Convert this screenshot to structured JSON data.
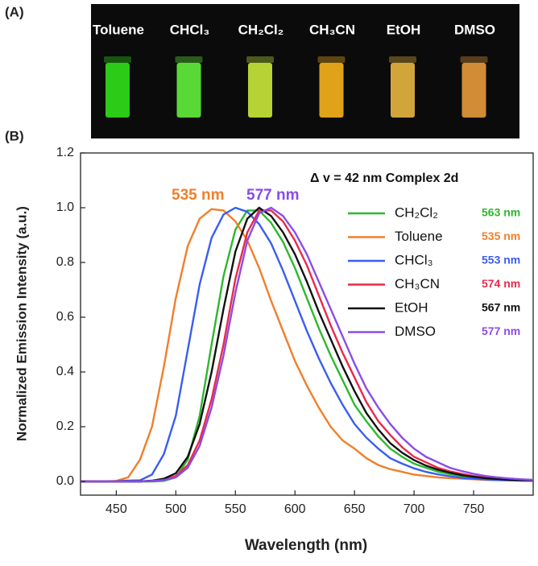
{
  "panel_a": {
    "label": "(A)",
    "solvents": [
      {
        "name": "Toluene",
        "color": "#2fe01a"
      },
      {
        "name": "CHCl₃",
        "color": "#62f03a"
      },
      {
        "name": "CH₂Cl₂",
        "color": "#c9e83a"
      },
      {
        "name": "CH₃CN",
        "color": "#f6b21a"
      },
      {
        "name": "EtOH",
        "color": "#e8b640"
      },
      {
        "name": "DMSO",
        "color": "#e89a3a"
      }
    ]
  },
  "chart_data": {
    "type": "line",
    "panel_label": "(B)",
    "annotations": [
      "Δ v = 42 nm Complex 2d",
      "535 nm",
      "577 nm"
    ],
    "x_label": "Wavelength (nm)",
    "y_label": "Normalized Emission Intensity (a.u.)",
    "x": [
      420,
      430,
      440,
      450,
      460,
      470,
      480,
      490,
      500,
      510,
      520,
      530,
      540,
      550,
      560,
      570,
      580,
      590,
      600,
      610,
      620,
      630,
      640,
      650,
      660,
      670,
      680,
      690,
      700,
      710,
      720,
      730,
      740,
      750,
      760,
      770,
      780,
      790,
      800
    ],
    "xlim": [
      420,
      800
    ],
    "xticks": [
      450,
      500,
      550,
      600,
      650,
      700,
      750
    ],
    "ylim": [
      -0.05,
      1.2
    ],
    "yticks": [
      {
        "value": 0,
        "label": "0.0"
      },
      0.2,
      0.4,
      0.6,
      0.8,
      {
        "value": 1,
        "label": "1.0"
      },
      1.2
    ],
    "series": [
      {
        "name": "CH₂Cl₂",
        "peak_label": "563 nm",
        "color": "#2db82d",
        "values": [
          0,
          0,
          0,
          0,
          0,
          0,
          0,
          0.002,
          0.015,
          0.08,
          0.24,
          0.5,
          0.75,
          0.92,
          0.99,
          0.99,
          0.945,
          0.875,
          0.78,
          0.67,
          0.56,
          0.46,
          0.37,
          0.28,
          0.22,
          0.165,
          0.12,
          0.09,
          0.065,
          0.05,
          0.036,
          0.027,
          0.019,
          0.013,
          0.009,
          0.006,
          0.005,
          0.004,
          0.003
        ]
      },
      {
        "name": "Toluene",
        "peak_label": "535 nm",
        "color": "#f07f2a",
        "values": [
          0,
          0,
          0,
          0.002,
          0.015,
          0.08,
          0.2,
          0.42,
          0.67,
          0.86,
          0.96,
          0.995,
          0.99,
          0.95,
          0.88,
          0.78,
          0.66,
          0.55,
          0.44,
          0.35,
          0.27,
          0.2,
          0.15,
          0.12,
          0.085,
          0.06,
          0.045,
          0.035,
          0.025,
          0.02,
          0.015,
          0.012,
          0.01,
          0.008,
          0.006,
          0.005,
          0.004,
          0.003,
          0.003
        ]
      },
      {
        "name": "CHCl₃",
        "peak_label": "553 nm",
        "color": "#3a5df0",
        "values": [
          0,
          0,
          0,
          0.001,
          0.003,
          0.004,
          0.025,
          0.1,
          0.24,
          0.48,
          0.72,
          0.89,
          0.975,
          1.0,
          0.985,
          0.94,
          0.87,
          0.77,
          0.66,
          0.55,
          0.45,
          0.36,
          0.28,
          0.21,
          0.16,
          0.12,
          0.085,
          0.065,
          0.048,
          0.035,
          0.026,
          0.019,
          0.013,
          0.01,
          0.007,
          0.005,
          0.004,
          0.003,
          0.003
        ]
      },
      {
        "name": "CH₃CN",
        "peak_label": "574 nm",
        "color": "#ea2a4a",
        "values": [
          0,
          0,
          0,
          0,
          0,
          0,
          0.002,
          0.006,
          0.02,
          0.06,
          0.15,
          0.3,
          0.5,
          0.74,
          0.91,
          0.99,
          0.99,
          0.95,
          0.88,
          0.79,
          0.68,
          0.57,
          0.47,
          0.38,
          0.29,
          0.22,
          0.17,
          0.125,
          0.09,
          0.07,
          0.05,
          0.037,
          0.028,
          0.02,
          0.014,
          0.01,
          0.007,
          0.005,
          0.004
        ]
      },
      {
        "name": "EtOH",
        "peak_label": "567 nm",
        "color": "#111111",
        "values": [
          0,
          0,
          0,
          0,
          0,
          0,
          0.003,
          0.01,
          0.03,
          0.09,
          0.21,
          0.4,
          0.63,
          0.84,
          0.96,
          1.0,
          0.97,
          0.91,
          0.83,
          0.73,
          0.62,
          0.52,
          0.42,
          0.33,
          0.25,
          0.19,
          0.14,
          0.105,
          0.078,
          0.058,
          0.043,
          0.032,
          0.023,
          0.017,
          0.012,
          0.009,
          0.006,
          0.005,
          0.004
        ]
      },
      {
        "name": "DMSO",
        "peak_label": "577 nm",
        "color": "#8a4ce8",
        "values": [
          0,
          0,
          0,
          0,
          0,
          0,
          0.002,
          0.005,
          0.015,
          0.05,
          0.13,
          0.27,
          0.46,
          0.69,
          0.88,
          0.98,
          1.0,
          0.97,
          0.91,
          0.83,
          0.73,
          0.63,
          0.53,
          0.43,
          0.34,
          0.27,
          0.21,
          0.16,
          0.12,
          0.09,
          0.07,
          0.05,
          0.038,
          0.028,
          0.02,
          0.015,
          0.011,
          0.008,
          0.006
        ]
      }
    ]
  }
}
